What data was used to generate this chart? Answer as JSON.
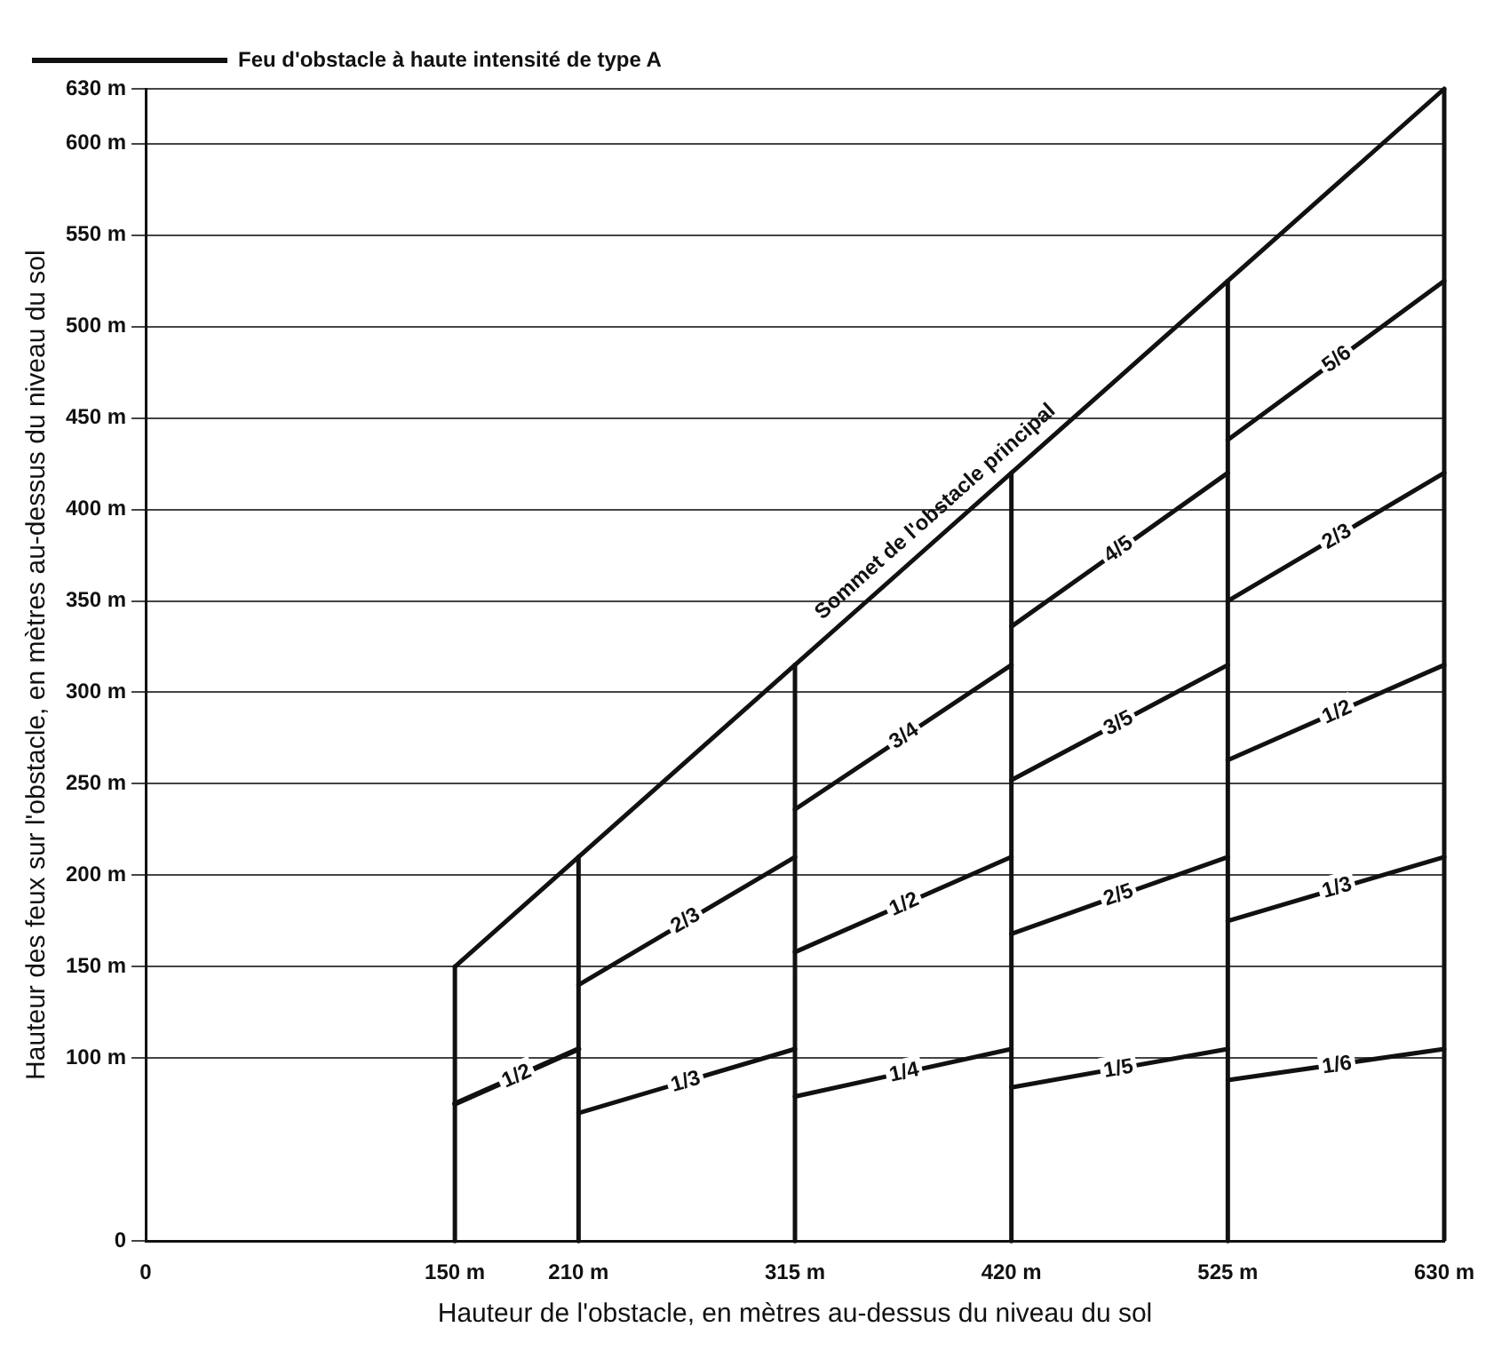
{
  "chart_data": {
    "type": "line",
    "xlabel": "Hauteur de l'obstacle, en mètres au-dessus du niveau du sol",
    "ylabel": "Hauteur des feux sur l'obstacle, en mètres au-dessus du niveau du sol",
    "xlim": [
      0,
      630
    ],
    "xticks": [
      0,
      {
        "value": 150,
        "label": "150 m"
      },
      {
        "value": 210,
        "label": "210 m"
      },
      {
        "value": 315,
        "label": "315 m"
      },
      {
        "value": 420,
        "label": "420 m"
      },
      {
        "value": 525,
        "label": "525 m"
      },
      {
        "value": 630,
        "label": "630 m"
      }
    ],
    "ylim": [
      0,
      630
    ],
    "yticks": [
      0,
      {
        "value": 100,
        "label": "100 m"
      },
      {
        "value": 150,
        "label": "150 m"
      },
      {
        "value": 200,
        "label": "200 m"
      },
      {
        "value": 250,
        "label": "250 m"
      },
      {
        "value": 300,
        "label": "300 m"
      },
      {
        "value": 350,
        "label": "350 m"
      },
      {
        "value": 400,
        "label": "400 m"
      },
      {
        "value": 450,
        "label": "450 m"
      },
      {
        "value": 500,
        "label": "500 m"
      },
      {
        "value": 550,
        "label": "550 m"
      },
      {
        "value": 600,
        "label": "600 m"
      },
      {
        "value": 630,
        "label": "630 m"
      }
    ],
    "grid": "y",
    "legend": "top left",
    "marker": "none",
    "line_style": "solid",
    "series": [
      {
        "name": "Feu d'obstacle à haute intensité de type A",
        "color": "#111111",
        "x": [
          150,
          210
        ],
        "values": [
          75,
          105
        ]
      },
      {
        "color": "#111111",
        "x": [
          210,
          315
        ],
        "values": [
          70,
          105
        ]
      },
      {
        "color": "#111111",
        "x": [
          210,
          315
        ],
        "values": [
          140,
          210
        ]
      },
      {
        "color": "#111111",
        "x": [
          315,
          420
        ],
        "values": [
          79,
          105
        ]
      },
      {
        "color": "#111111",
        "x": [
          315,
          420
        ],
        "values": [
          158,
          210
        ]
      },
      {
        "color": "#111111",
        "x": [
          315,
          420
        ],
        "values": [
          236,
          315
        ]
      },
      {
        "color": "#111111",
        "x": [
          420,
          525
        ],
        "values": [
          84,
          105
        ]
      },
      {
        "color": "#111111",
        "x": [
          420,
          525
        ],
        "values": [
          168,
          210
        ]
      },
      {
        "color": "#111111",
        "x": [
          420,
          525
        ],
        "values": [
          252,
          315
        ]
      },
      {
        "color": "#111111",
        "x": [
          420,
          525
        ],
        "values": [
          336,
          420
        ]
      },
      {
        "color": "#111111",
        "x": [
          525,
          630
        ],
        "values": [
          88,
          105
        ]
      },
      {
        "color": "#111111",
        "x": [
          525,
          630
        ],
        "values": [
          175,
          210
        ]
      },
      {
        "color": "#111111",
        "x": [
          525,
          630
        ],
        "values": [
          263,
          315
        ]
      },
      {
        "color": "#111111",
        "x": [
          525,
          630
        ],
        "values": [
          350,
          420
        ]
      },
      {
        "color": "#111111",
        "x": [
          525,
          630
        ],
        "values": [
          438,
          525
        ]
      },
      {
        "color": "#111111",
        "x": [
          150,
          630
        ],
        "values": [
          150,
          630
        ]
      },
      {
        "color": "#111111",
        "x": [
          150,
          150
        ],
        "values": [
          0,
          150
        ]
      },
      {
        "color": "#111111",
        "x": [
          210,
          210
        ],
        "values": [
          0,
          210
        ]
      },
      {
        "color": "#111111",
        "x": [
          315,
          315
        ],
        "values": [
          0,
          315
        ]
      },
      {
        "color": "#111111",
        "x": [
          420,
          420
        ],
        "values": [
          0,
          420
        ]
      },
      {
        "color": "#111111",
        "x": [
          525,
          525
        ],
        "values": [
          0,
          525
        ]
      }
    ],
    "annotations": [
      {
        "text": "Sommet de l'obstacle principal",
        "x": 390,
        "y": 390
      },
      {
        "text": "1/2",
        "x": 180,
        "y": 90
      },
      {
        "text": "1/3",
        "x": 262,
        "y": 87
      },
      {
        "text": "2/3",
        "x": 262,
        "y": 175
      },
      {
        "text": "1/4",
        "x": 368,
        "y": 92
      },
      {
        "text": "1/2",
        "x": 368,
        "y": 184
      },
      {
        "text": "3/4",
        "x": 368,
        "y": 276
      },
      {
        "text": "1/5",
        "x": 472,
        "y": 94
      },
      {
        "text": "2/5",
        "x": 472,
        "y": 189
      },
      {
        "text": "3/5",
        "x": 472,
        "y": 283
      },
      {
        "text": "4/5",
        "x": 472,
        "y": 378
      },
      {
        "text": "1/6",
        "x": 578,
        "y": 96
      },
      {
        "text": "1/3",
        "x": 578,
        "y": 193
      },
      {
        "text": "1/2",
        "x": 578,
        "y": 289
      },
      {
        "text": "2/3",
        "x": 578,
        "y": 385
      },
      {
        "text": "5/6",
        "x": 578,
        "y": 482
      }
    ]
  }
}
